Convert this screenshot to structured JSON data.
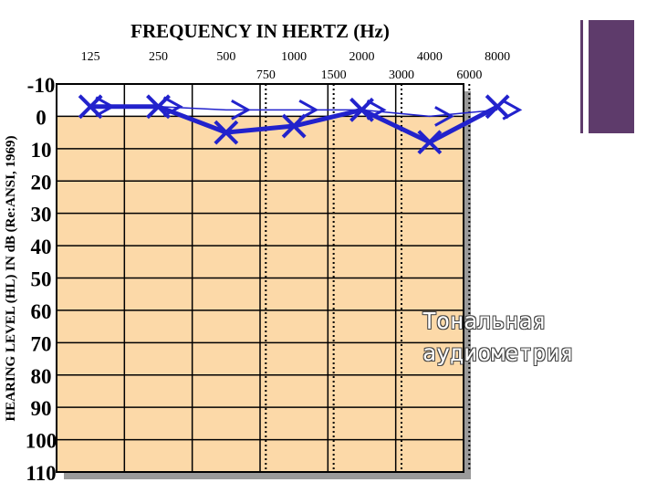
{
  "chart_data": {
    "type": "line",
    "title": "FREQUENCY IN HERTZ (Hz)",
    "ylabel": "HEARING LEVEL (HL) IN dB (Re:ANSI, 1969)",
    "x_ticks_main": [
      "125",
      "250",
      "500",
      "1000",
      "2000",
      "4000",
      "8000"
    ],
    "x_ticks_inter": [
      "750",
      "1500",
      "3000",
      "6000"
    ],
    "y_ticks": [
      "-10",
      "0",
      "10",
      "20",
      "30",
      "40",
      "50",
      "60",
      "70",
      "80",
      "90",
      "100",
      "110"
    ],
    "ylim": [
      -10,
      110
    ],
    "y_inverted": true,
    "grid": true,
    "series": [
      {
        "symbol": "x",
        "color": "#2222cc",
        "x": [
          125,
          250,
          500,
          1000,
          2000,
          4000,
          8000
        ],
        "y": [
          -3,
          -3,
          5,
          3,
          -2,
          8,
          -3
        ]
      },
      {
        "symbol": ">",
        "color": "#2222cc",
        "x": [
          125,
          250,
          500,
          1000,
          2000,
          4000,
          8000
        ],
        "y": [
          -3,
          -3,
          -2,
          -2,
          -2,
          0,
          -2
        ]
      }
    ],
    "colors": {
      "hearing_zone": "#fcd9a8",
      "upper_zone": "#ffffff",
      "frame_shadow": "#9a9a9a"
    }
  },
  "caption": {
    "line1": "Тональная",
    "line2": "аудиометрия"
  },
  "decor": {
    "accent_color": "#5e3b6b"
  }
}
